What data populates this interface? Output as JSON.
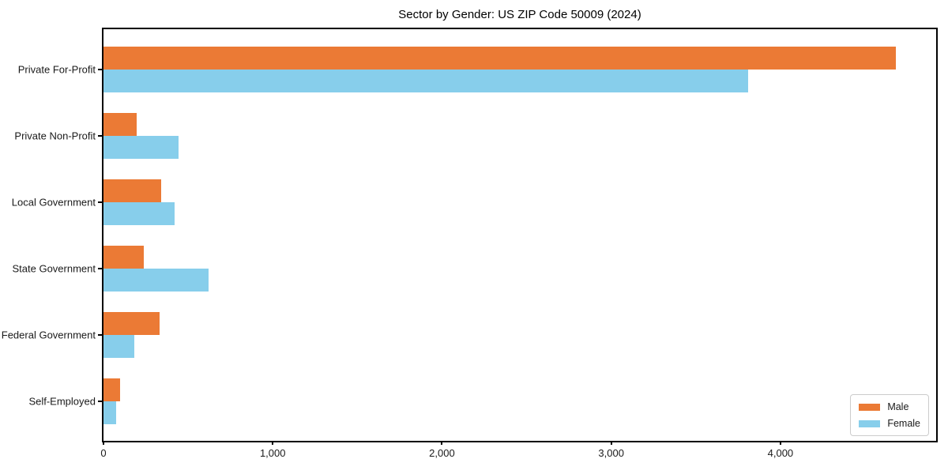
{
  "chart_data": {
    "type": "bar",
    "orientation": "horizontal",
    "title": "Sector by Gender: US ZIP Code 50009 (2024)",
    "categories": [
      "Private For-Profit",
      "Private Non-Profit",
      "Local Government",
      "State Government",
      "Federal Government",
      "Self-Employed"
    ],
    "series": [
      {
        "name": "Male",
        "color": "#EB7A35",
        "values": [
          4680,
          195,
          340,
          240,
          330,
          100
        ]
      },
      {
        "name": "Female",
        "color": "#87CEEB",
        "values": [
          3810,
          445,
          420,
          620,
          180,
          75
        ]
      }
    ],
    "xlabel": "",
    "ylabel": "",
    "xlim": [
      0,
      4920
    ],
    "x_ticks": [
      0,
      1000,
      2000,
      3000,
      4000
    ],
    "x_tick_labels": [
      "0",
      "1,000",
      "2,000",
      "3,000",
      "4,000"
    ],
    "grid": false,
    "plot_background": "#ffffff",
    "spine_color": "#000000",
    "legend": {
      "position": "lower right",
      "entries": [
        "Male",
        "Female"
      ]
    }
  }
}
